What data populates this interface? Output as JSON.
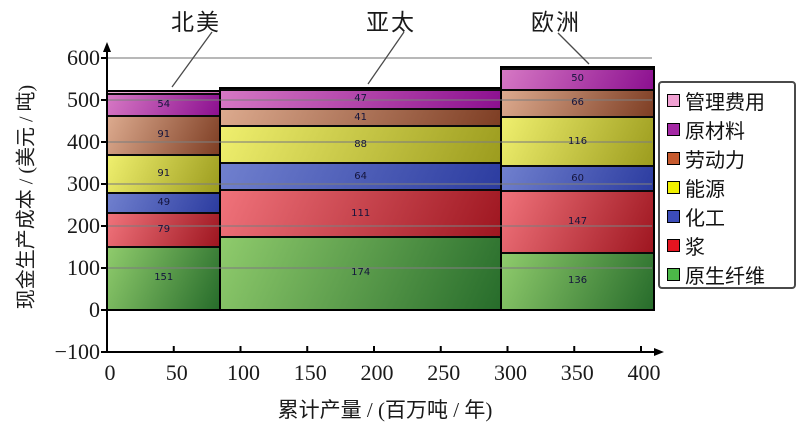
{
  "chart": {
    "region_labels": [
      "北美",
      "亚太",
      "欧洲"
    ],
    "y_axis": {
      "title": "现金生产成本 / (美元 / 吨)",
      "tick_values": [
        600,
        500,
        400,
        300,
        200,
        100,
        0,
        -100
      ],
      "tick_labels": [
        "600",
        "500",
        "400",
        "300",
        "200",
        "100",
        "0",
        "−100"
      ]
    },
    "x_axis": {
      "title": "累计产量 / (百万吨 / 年)",
      "tick_values": [
        0,
        50,
        100,
        150,
        200,
        250,
        300,
        350,
        400
      ],
      "tick_labels": [
        "0",
        "50",
        "100",
        "150",
        "200",
        "250",
        "300",
        "350",
        "400"
      ]
    },
    "legend": {
      "items": [
        {
          "label": "管理费用",
          "swatch_color": "#F0A0D2"
        },
        {
          "label": "原材料",
          "swatch_color": "#A428A4"
        },
        {
          "label": "劳动力",
          "swatch_color": "#C65A2E"
        },
        {
          "label": "能源",
          "swatch_color": "#F0F000"
        },
        {
          "label": "化工",
          "swatch_color": "#3C4CB8"
        },
        {
          "label": "浆",
          "swatch_color": "#E41420"
        },
        {
          "label": "原生纤维",
          "swatch_color": "#4CB848"
        }
      ]
    }
  },
  "chart_data": {
    "type": "bar",
    "variant": "variable-width stacked cost curve",
    "title": "",
    "xlabel": "累计产量 / (百万吨 / 年)",
    "ylabel": "现金生产成本 / (美元 / 吨)",
    "categories": [
      "北美",
      "亚太",
      "欧洲"
    ],
    "x_ranges": [
      [
        0,
        85
      ],
      [
        85,
        295
      ],
      [
        295,
        410
      ]
    ],
    "series": [
      {
        "name": "原生纤维",
        "values": [
          151,
          174,
          136
        ],
        "color_light": "#8FCB6C",
        "color_dark": "#276C2B"
      },
      {
        "name": "浆",
        "values": [
          79,
          111,
          147
        ],
        "color_light": "#F0737B",
        "color_dark": "#9E1620"
      },
      {
        "name": "化工",
        "values": [
          49,
          64,
          60
        ],
        "color_light": "#7080CE",
        "color_dark": "#2C3CA0"
      },
      {
        "name": "能源",
        "values": [
          91,
          88,
          116
        ],
        "color_light": "#EFEF6E",
        "color_dark": "#9C9C1E"
      },
      {
        "name": "劳动力",
        "values": [
          91,
          41,
          66
        ],
        "color_light": "#DCAA8E",
        "color_dark": "#7E3E24"
      },
      {
        "name": "原材料",
        "values": [
          54,
          47,
          50
        ],
        "color_light": "#D678C4",
        "color_dark": "#8C1090"
      },
      {
        "name": "管理费用",
        "values": [
          6,
          4,
          3
        ],
        "approx": true,
        "labels_hidden": true,
        "color_light": "#F2B8DC",
        "color_dark": "#CE70B4"
      }
    ],
    "totals_approx": [
      521,
      529,
      578
    ],
    "ylim": [
      -100,
      600
    ],
    "xlim": [
      0,
      415
    ],
    "grid": "horizontal gridlines every 100, drawn over bars"
  }
}
